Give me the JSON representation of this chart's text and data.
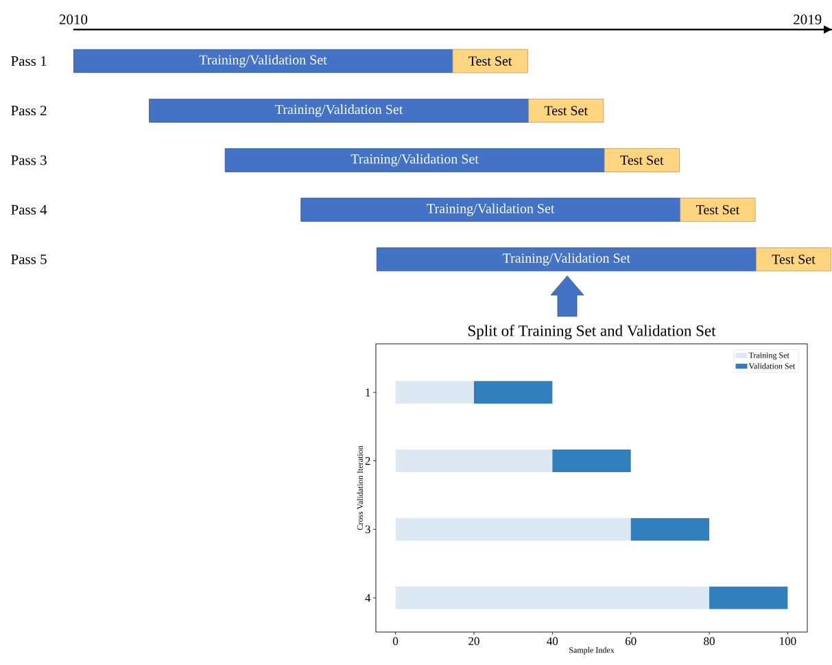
{
  "chart_data": [
    {
      "type": "bar",
      "orientation": "horizontal",
      "categories": [
        "Pass 1",
        "Pass 2",
        "Pass 3",
        "Pass 4",
        "Pass 5"
      ],
      "series": [
        {
          "name": "Training/Validation Set",
          "color": "#4472c4",
          "base": [
            2010,
            2010.93,
            2011.86,
            2012.79,
            2013.72
          ],
          "values": [
            4.65,
            4.65,
            4.65,
            4.65,
            4.65
          ]
        },
        {
          "name": "Test Set",
          "color": "#ffd580",
          "base": [
            2014.65,
            2015.58,
            2016.51,
            2017.44,
            2018.37
          ],
          "values": [
            0.92,
            0.92,
            0.92,
            0.92,
            0.92
          ]
        }
      ],
      "xlim": [
        2010,
        2019.3
      ],
      "xticks": [
        2010,
        2019
      ]
    },
    {
      "type": "bar",
      "orientation": "horizontal",
      "stacked": true,
      "title": "Split of Training Set and Validation Set",
      "xlabel": "Sample Index",
      "ylabel": "Cross Validation Iteration",
      "categories": [
        "1",
        "2",
        "3",
        "4"
      ],
      "series": [
        {
          "name": "Training Set",
          "color": "#dde8f5",
          "values": [
            20,
            40,
            60,
            80
          ]
        },
        {
          "name": "Validation Set",
          "color": "#3180bd",
          "values": [
            20,
            20,
            20,
            20
          ]
        }
      ],
      "xlim": [
        -5,
        105
      ],
      "xticks": [
        0,
        20,
        40,
        60,
        80,
        100
      ],
      "legend": "top right"
    }
  ]
}
